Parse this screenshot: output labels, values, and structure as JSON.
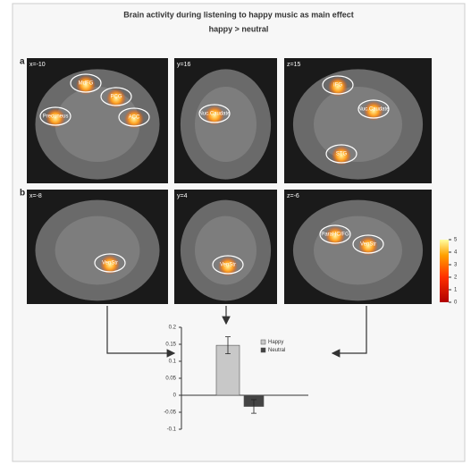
{
  "title": "Brain activity during listening to happy music as main effect",
  "subtitle": "happy > neutral",
  "panels": [
    {
      "label": "a",
      "slices": [
        {
          "coord": "x=-10",
          "regions": [
            "MdFG",
            "PCG",
            "Precuneus",
            "ACC"
          ]
        },
        {
          "coord": "y=16",
          "regions": [
            "Nuc.Caudate"
          ]
        },
        {
          "coord": "z=15",
          "regions": [
            "IFG",
            "Nuc.Caudate",
            "STG"
          ]
        }
      ]
    },
    {
      "label": "b",
      "slices": [
        {
          "coord": "x=-8",
          "regions": [
            "VenStr"
          ]
        },
        {
          "coord": "y=4",
          "regions": [
            "VenStr"
          ]
        },
        {
          "coord": "z=-6",
          "regions": [
            "ParaHC/FG",
            "VenStr"
          ]
        }
      ]
    }
  ],
  "colorbar": {
    "ticks": [
      0,
      1,
      2,
      3,
      4,
      5
    ]
  },
  "chart_data": {
    "type": "bar",
    "series": [
      {
        "name": "Happy",
        "color": "#c8c8c8",
        "values": [
          0.147
        ],
        "errors": [
          0.025
        ]
      },
      {
        "name": "Neutral",
        "color": "#444444",
        "values": [
          -0.033
        ],
        "errors": [
          0.02
        ]
      }
    ],
    "ylim": [
      -0.1,
      0.2
    ],
    "yticks": [
      -0.1,
      -0.05,
      0,
      0.05,
      0.1,
      0.15,
      0.2
    ]
  }
}
